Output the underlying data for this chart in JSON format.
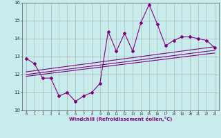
{
  "title": "",
  "xlabel": "Windchill (Refroidissement éolien,°C)",
  "ylabel": "",
  "bg_color": "#c8ecec",
  "grid_color": "#aaaaaa",
  "line_color": "#800080",
  "x_values": [
    0,
    1,
    2,
    3,
    4,
    5,
    6,
    7,
    8,
    9,
    10,
    11,
    12,
    13,
    14,
    15,
    16,
    17,
    18,
    19,
    20,
    21,
    22,
    23
  ],
  "y_series1": [
    12.9,
    12.6,
    11.8,
    11.8,
    10.8,
    11.0,
    10.5,
    10.8,
    11.0,
    11.5,
    14.4,
    13.3,
    14.3,
    13.3,
    14.9,
    15.9,
    14.8,
    13.6,
    13.9,
    14.1,
    14.1,
    14.0,
    13.9,
    13.5
  ],
  "trend1_x": [
    0,
    23
  ],
  "trend1_y": [
    12.0,
    13.35
  ],
  "trend2_x": [
    0,
    23
  ],
  "trend2_y": [
    12.15,
    13.55
  ],
  "trend3_x": [
    0,
    23
  ],
  "trend3_y": [
    11.9,
    13.2
  ],
  "xlim": [
    -0.5,
    23.5
  ],
  "ylim": [
    10.0,
    16.0
  ],
  "xtick_labels": [
    "0",
    "1",
    "2",
    "3",
    "4",
    "5",
    "6",
    "7",
    "8",
    "9",
    "10",
    "11",
    "12",
    "13",
    "14",
    "15",
    "16",
    "17",
    "18",
    "19",
    "20",
    "21",
    "22",
    "23"
  ],
  "ytick_labels": [
    "10",
    "11",
    "12",
    "13",
    "14",
    "15",
    "16"
  ]
}
